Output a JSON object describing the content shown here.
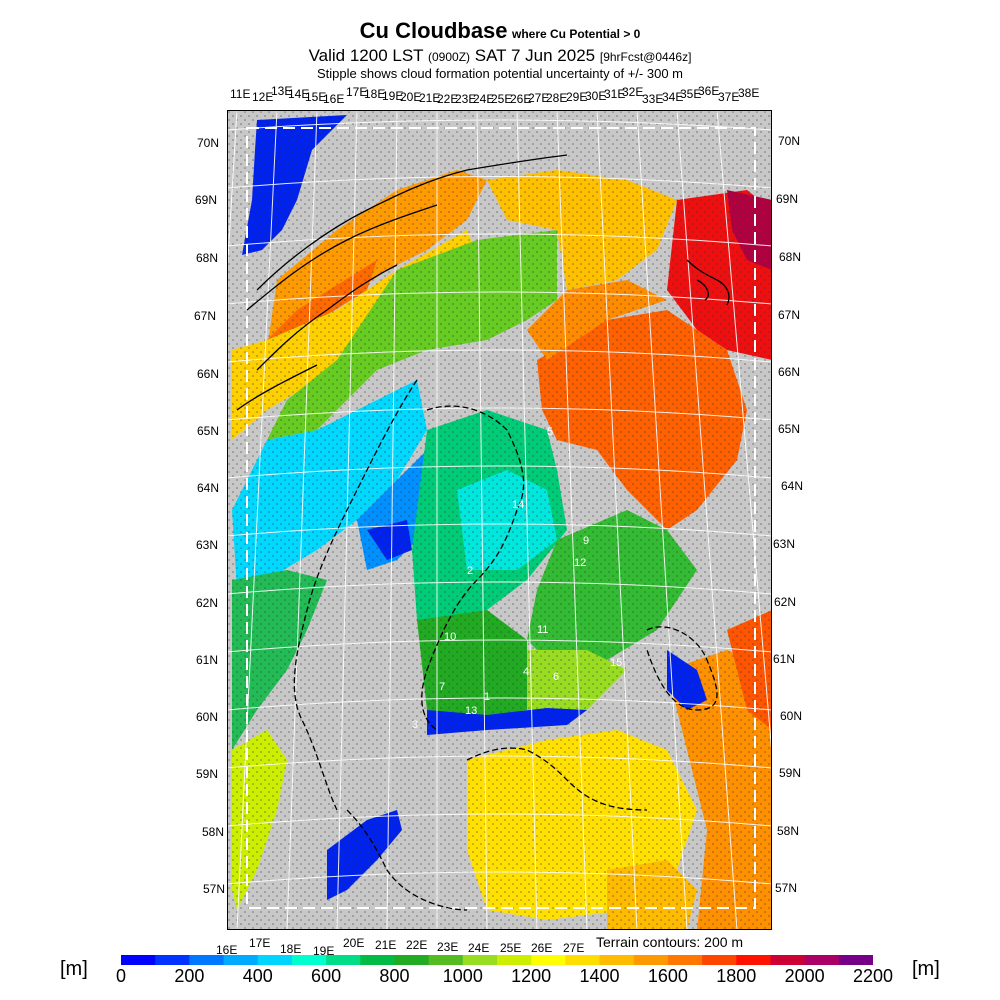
{
  "header": {
    "title": "Cu Cloudbase",
    "title_suffix": "where Cu Potential > 0",
    "valid_prefix": "Valid 1200 LST",
    "valid_utc": "(0900Z)",
    "valid_date": "SAT 7 Jun 2025",
    "forecast": "[9hrFcst@0446z]",
    "stipple_note": "Stipple shows cloud formation potential uncertainty of +/- 300 m"
  },
  "top_longitudes": [
    "11E",
    "12E",
    "13E",
    "14E",
    "15E",
    "16E",
    "17E",
    "18E",
    "19E",
    "20E",
    "21E",
    "22E",
    "23E",
    "24E",
    "25E",
    "26E",
    "27E",
    "28E",
    "29E",
    "30E",
    "31E",
    "32E",
    "33E",
    "34E",
    "35E",
    "36E",
    "37E",
    "38E"
  ],
  "bottom_longitudes": [
    "16E",
    "17E",
    "18E",
    "19E",
    "20E",
    "21E",
    "22E",
    "23E",
    "24E",
    "25E",
    "26E",
    "27E"
  ],
  "left_latitudes": [
    "70N",
    "69N",
    "68N",
    "67N",
    "66N",
    "65N",
    "64N",
    "63N",
    "62N",
    "61N",
    "60N",
    "59N",
    "58N",
    "57N"
  ],
  "right_latitudes": [
    "70N",
    "69N",
    "68N",
    "67N",
    "66N",
    "65N",
    "64N",
    "63N",
    "62N",
    "61N",
    "60N",
    "59N",
    "58N",
    "57N"
  ],
  "station_labels": [
    "14",
    "9",
    "2",
    "12",
    "10",
    "11",
    "15",
    "4",
    "7",
    "6",
    "1",
    "13",
    "3",
    "5"
  ],
  "terrain_note": "Terrain contours: 200 m",
  "colorbar": {
    "unit_left": "[m]",
    "unit_right": "[m]",
    "tick_labels": [
      "0",
      "200",
      "400",
      "600",
      "800",
      "1000",
      "1200",
      "1400",
      "1600",
      "1800",
      "2000",
      "2200"
    ],
    "colors": [
      "#0000ff",
      "#0033ff",
      "#0077ff",
      "#00aaff",
      "#00d5ff",
      "#00ffcc",
      "#00dd88",
      "#00bb44",
      "#22aa22",
      "#55bb22",
      "#99dd22",
      "#ccee00",
      "#ffff00",
      "#ffdd00",
      "#ffbb00",
      "#ff9900",
      "#ff7700",
      "#ff4400",
      "#ff1100",
      "#cc0033",
      "#aa0066",
      "#770088"
    ]
  },
  "map": {
    "land_no_data_color": "#c8c8c8",
    "water_color": "#c8c8c8"
  }
}
